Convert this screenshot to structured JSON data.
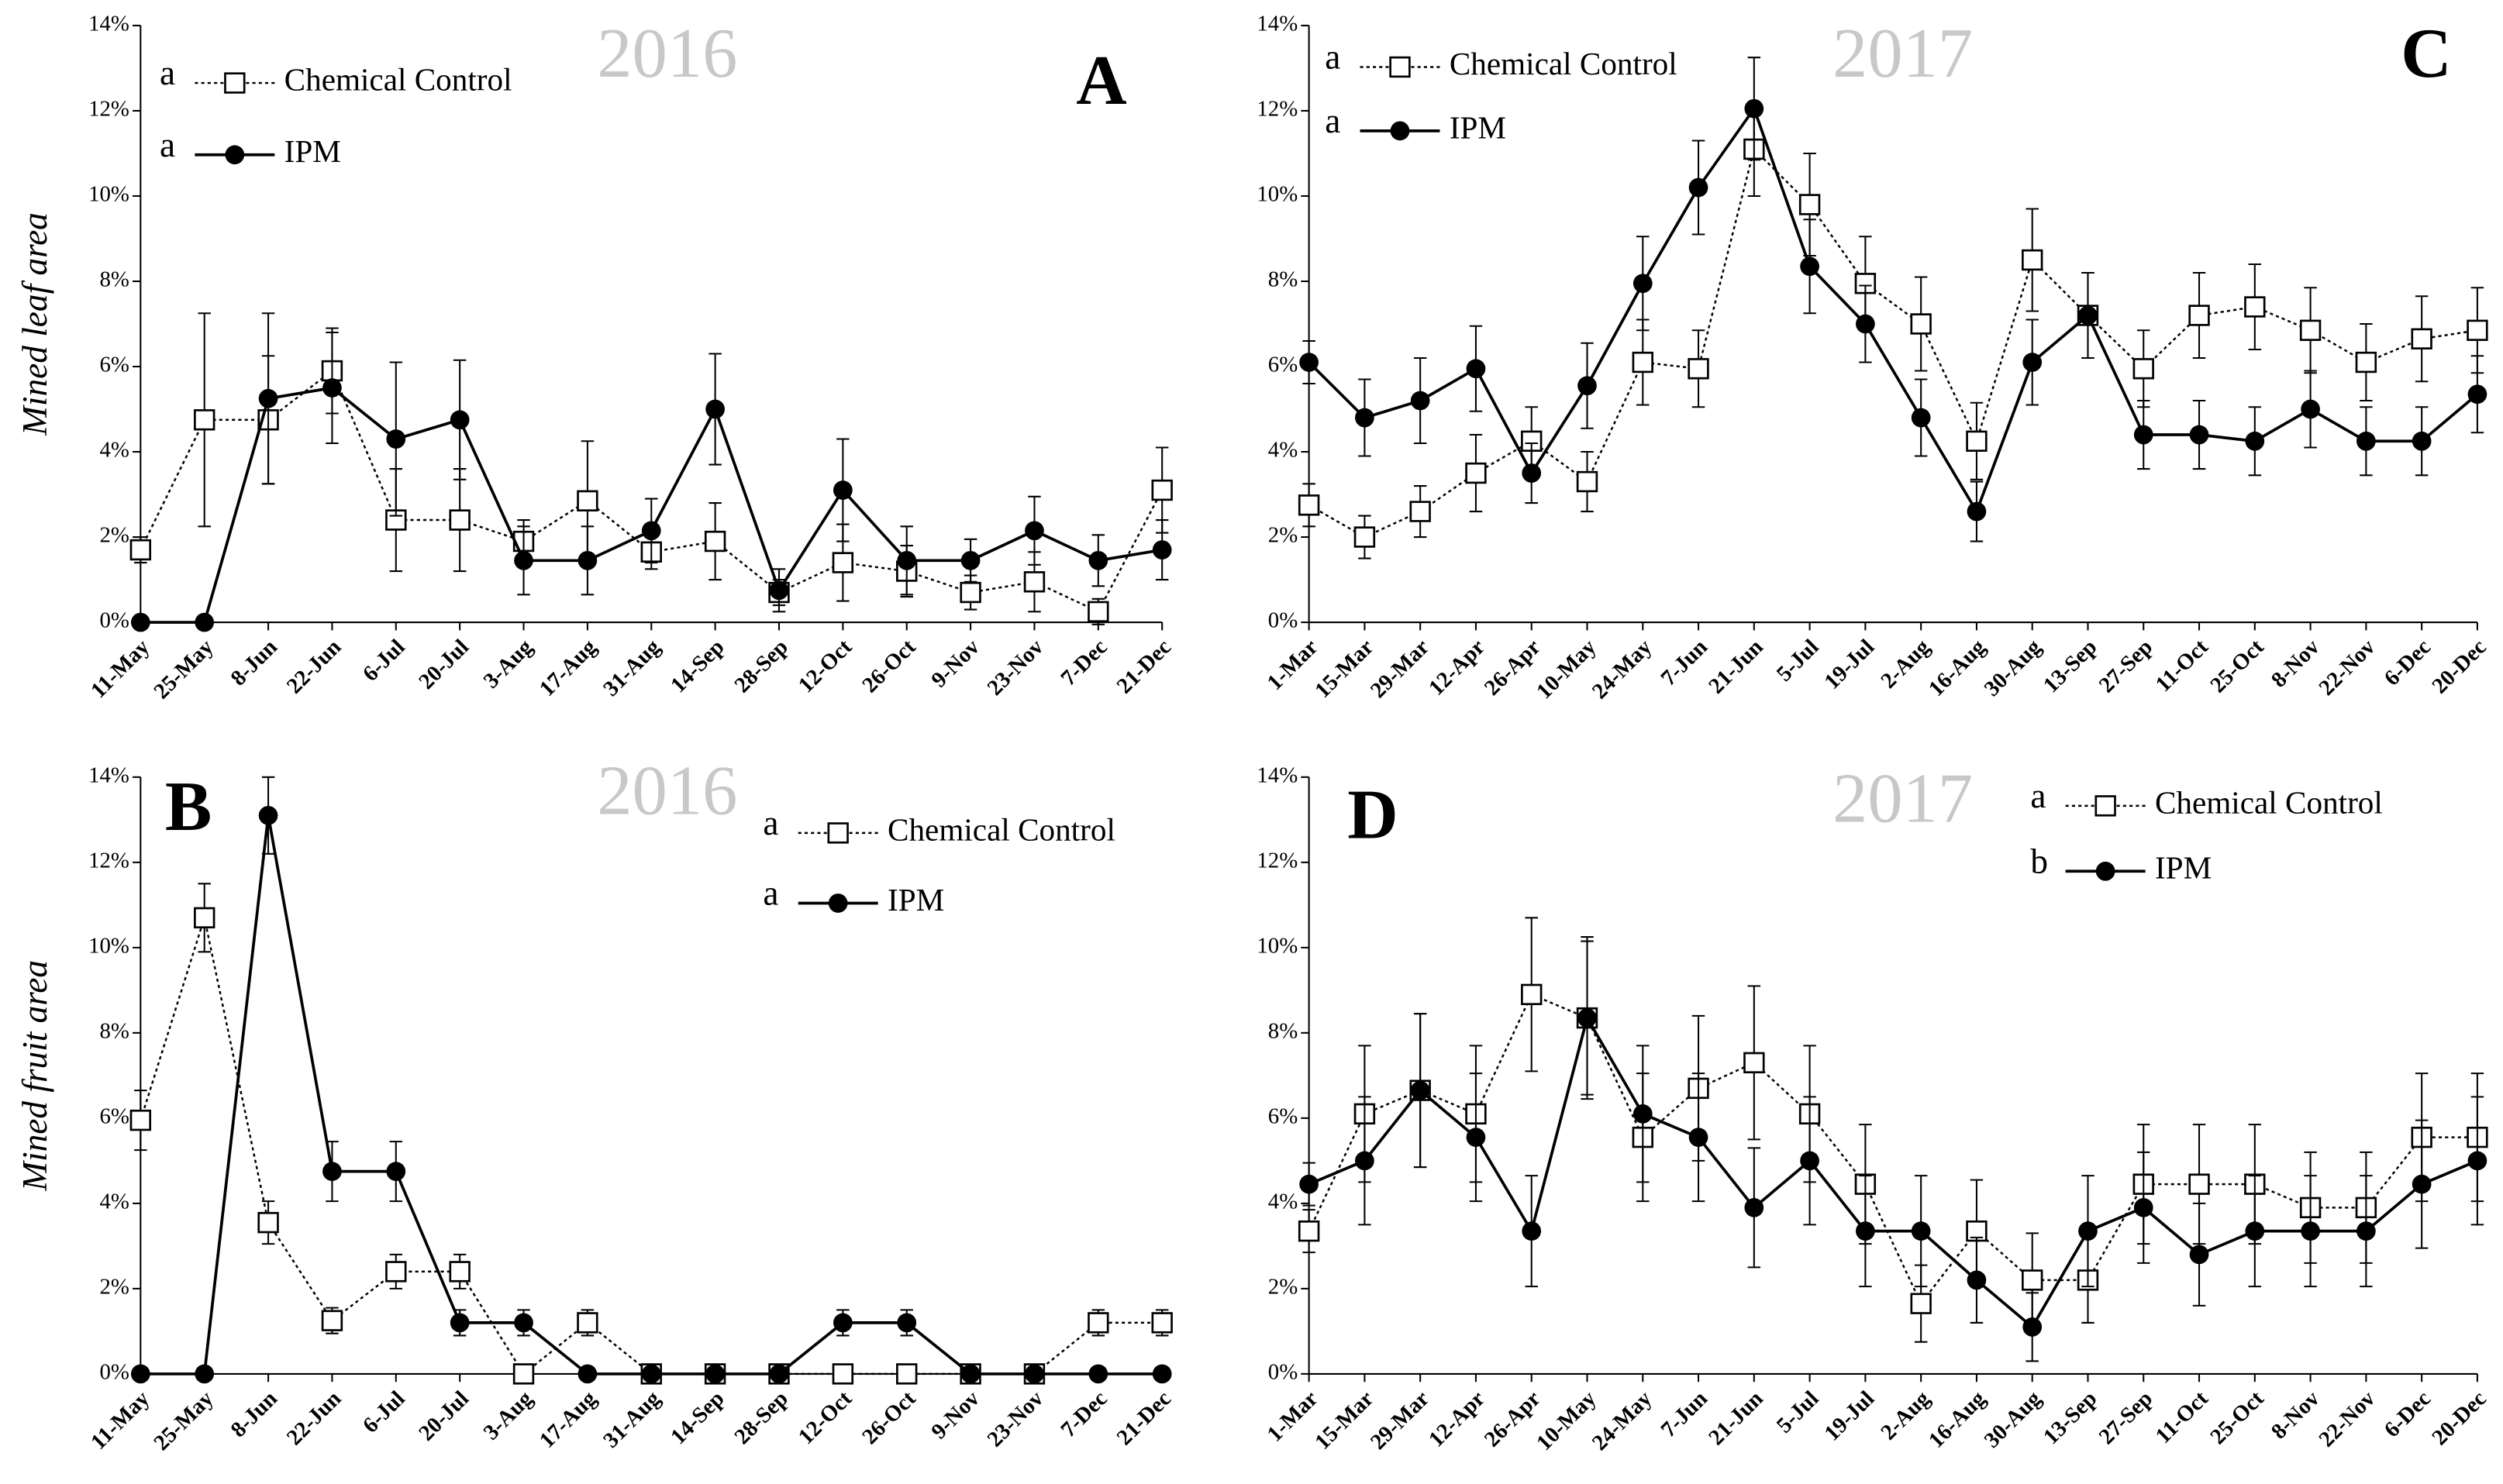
{
  "chart_data": [
    {
      "type": "line",
      "panel_label": "A",
      "year_label": "2016",
      "y_label": "Mined leaf area",
      "categories": [
        "11-May",
        "25-May",
        "8-Jun",
        "22-Jun",
        "6-Jul",
        "20-Jul",
        "3-Aug",
        "17-Aug",
        "31-Aug",
        "14-Sep",
        "28-Sep",
        "12-Oct",
        "26-Oct",
        "9-Nov",
        "23-Nov",
        "7-Dec",
        "21-Dec"
      ],
      "ylim": [
        0,
        14
      ],
      "yticks": [
        {
          "value": 0,
          "label": "0%"
        },
        {
          "value": 2,
          "label": "2%"
        },
        {
          "value": 4,
          "label": "4%"
        },
        {
          "value": 6,
          "label": "6%"
        },
        {
          "value": 8,
          "label": "8%"
        },
        {
          "value": 10,
          "label": "10%"
        },
        {
          "value": 12,
          "label": "12%"
        },
        {
          "value": 14,
          "label": "14%"
        }
      ],
      "series": [
        {
          "name": "Chemical Control",
          "significance": "a",
          "color": "#000000",
          "marker": "square",
          "line": "dotted",
          "values": [
            1.7,
            4.75,
            4.75,
            5.9,
            2.4,
            2.4,
            1.9,
            2.85,
            1.65,
            1.9,
            0.7,
            1.4,
            1.2,
            0.7,
            0.95,
            0.25,
            3.1
          ],
          "errors": [
            0.3,
            2.5,
            1.5,
            1.0,
            1.2,
            1.2,
            0.5,
            1.4,
            0.4,
            0.9,
            0.3,
            0.9,
            0.6,
            0.4,
            0.7,
            0.3,
            1.0
          ]
        },
        {
          "name": "IPM",
          "significance": "a",
          "color": "#000000",
          "marker": "circle",
          "line": "solid",
          "values": [
            0,
            0,
            5.25,
            5.5,
            4.3,
            4.75,
            1.45,
            1.45,
            2.15,
            5.0,
            0.75,
            3.1,
            1.45,
            1.45,
            2.15,
            1.45,
            1.7
          ],
          "errors": [
            0,
            0,
            2.0,
            1.3,
            1.8,
            1.4,
            0.8,
            0.8,
            0.75,
            1.3,
            0.5,
            1.2,
            0.8,
            0.5,
            0.8,
            0.6,
            0.7
          ]
        }
      ]
    },
    {
      "type": "line",
      "panel_label": "B",
      "year_label": "2016",
      "y_label": "Mined fruit area",
      "categories": [
        "11-May",
        "25-May",
        "8-Jun",
        "22-Jun",
        "6-Jul",
        "20-Jul",
        "3-Aug",
        "17-Aug",
        "31-Aug",
        "14-Sep",
        "28-Sep",
        "12-Oct",
        "26-Oct",
        "9-Nov",
        "23-Nov",
        "7-Dec",
        "21-Dec"
      ],
      "ylim": [
        0,
        14
      ],
      "yticks": [
        {
          "value": 0,
          "label": "0%"
        },
        {
          "value": 2,
          "label": "2%"
        },
        {
          "value": 4,
          "label": "4%"
        },
        {
          "value": 6,
          "label": "6%"
        },
        {
          "value": 8,
          "label": "8%"
        },
        {
          "value": 10,
          "label": "10%"
        },
        {
          "value": 12,
          "label": "12%"
        },
        {
          "value": 14,
          "label": "14%"
        }
      ],
      "series": [
        {
          "name": "Chemical Control",
          "significance": "a",
          "color": "#000000",
          "marker": "square",
          "line": "dotted",
          "values": [
            5.95,
            10.7,
            3.55,
            1.25,
            2.4,
            2.4,
            0,
            1.2,
            0,
            0,
            0,
            0,
            0,
            0,
            0,
            1.2,
            1.2
          ],
          "errors": [
            0.7,
            0.8,
            0.5,
            0.3,
            0.4,
            0.4,
            0,
            0.3,
            0,
            0,
            0,
            0,
            0,
            0,
            0,
            0.3,
            0.3
          ]
        },
        {
          "name": "IPM",
          "significance": "a",
          "color": "#000000",
          "marker": "circle",
          "line": "solid",
          "values": [
            0,
            0,
            13.1,
            4.75,
            4.75,
            1.2,
            1.2,
            0,
            0,
            0,
            0,
            1.2,
            1.2,
            0,
            0,
            0,
            0
          ],
          "errors": [
            0,
            0,
            0.9,
            0.7,
            0.7,
            0.3,
            0.3,
            0,
            0,
            0,
            0,
            0.3,
            0.3,
            0,
            0,
            0,
            0
          ]
        }
      ]
    },
    {
      "type": "line",
      "panel_label": "C",
      "year_label": "2017",
      "categories": [
        "1-Mar",
        "15-Mar",
        "29-Mar",
        "12-Apr",
        "26-Apr",
        "10-May",
        "24-May",
        "7-Jun",
        "21-Jun",
        "5-Jul",
        "19-Jul",
        "2-Aug",
        "16-Aug",
        "30-Aug",
        "13-Sep",
        "27-Sep",
        "11-Oct",
        "25-Oct",
        "8-Nov",
        "22-Nov",
        "6-Dec",
        "20-Dec"
      ],
      "ylim": [
        0,
        14
      ],
      "yticks": [
        {
          "value": 0,
          "label": "0%"
        },
        {
          "value": 2,
          "label": "2%"
        },
        {
          "value": 4,
          "label": "4%"
        },
        {
          "value": 6,
          "label": "6%"
        },
        {
          "value": 8,
          "label": "8%"
        },
        {
          "value": 10,
          "label": "10%"
        },
        {
          "value": 12,
          "label": "12%"
        },
        {
          "value": 14,
          "label": "14%"
        }
      ],
      "series": [
        {
          "name": "Chemical Control",
          "significance": "a",
          "color": "#000000",
          "marker": "square",
          "line": "dotted",
          "values": [
            2.75,
            2.0,
            2.6,
            3.5,
            4.25,
            3.3,
            6.1,
            5.95,
            11.1,
            9.8,
            7.95,
            7.0,
            4.25,
            8.5,
            7.2,
            5.95,
            7.2,
            7.4,
            6.85,
            6.1,
            6.65,
            6.85
          ],
          "errors": [
            0.5,
            0.5,
            0.6,
            0.9,
            0.8,
            0.7,
            1.0,
            0.9,
            1.1,
            1.2,
            1.1,
            1.1,
            0.9,
            1.2,
            1.0,
            0.9,
            1.0,
            1.0,
            1.0,
            0.9,
            1.0,
            1.0
          ]
        },
        {
          "name": "IPM",
          "significance": "a",
          "color": "#000000",
          "marker": "circle",
          "line": "solid",
          "values": [
            6.1,
            4.8,
            5.2,
            5.95,
            3.5,
            5.55,
            7.95,
            10.2,
            12.05,
            8.35,
            7.0,
            4.8,
            2.6,
            6.1,
            7.2,
            4.4,
            4.4,
            4.25,
            5.0,
            4.25,
            4.25,
            5.35
          ],
          "errors": [
            0.5,
            0.9,
            1.0,
            1.0,
            0.7,
            1.0,
            1.1,
            1.1,
            1.2,
            1.1,
            0.9,
            0.9,
            0.7,
            1.0,
            1.0,
            0.8,
            0.8,
            0.8,
            0.9,
            0.8,
            0.8,
            0.9
          ]
        }
      ]
    },
    {
      "type": "line",
      "panel_label": "D",
      "year_label": "2017",
      "categories": [
        "1-Mar",
        "15-Mar",
        "29-Mar",
        "12-Apr",
        "26-Apr",
        "10-May",
        "24-May",
        "7-Jun",
        "21-Jun",
        "5-Jul",
        "19-Jul",
        "2-Aug",
        "16-Aug",
        "30-Aug",
        "13-Sep",
        "27-Sep",
        "11-Oct",
        "25-Oct",
        "8-Nov",
        "22-Nov",
        "6-Dec",
        "20-Dec"
      ],
      "ylim": [
        0,
        14
      ],
      "yticks": [
        {
          "value": 0,
          "label": "0%"
        },
        {
          "value": 2,
          "label": "2%"
        },
        {
          "value": 4,
          "label": "4%"
        },
        {
          "value": 6,
          "label": "6%"
        },
        {
          "value": 8,
          "label": "8%"
        },
        {
          "value": 10,
          "label": "10%"
        },
        {
          "value": 12,
          "label": "12%"
        },
        {
          "value": 14,
          "label": "14%"
        }
      ],
      "series": [
        {
          "name": "Chemical Control",
          "significance": "a",
          "color": "#000000",
          "marker": "square",
          "line": "dotted",
          "values": [
            3.35,
            6.1,
            6.65,
            6.1,
            8.9,
            8.35,
            5.55,
            6.7,
            7.3,
            6.1,
            4.45,
            1.65,
            3.35,
            2.2,
            2.2,
            4.45,
            4.45,
            4.45,
            3.9,
            3.9,
            5.55,
            5.55
          ],
          "errors": [
            0.5,
            1.6,
            1.8,
            1.6,
            1.8,
            1.9,
            1.5,
            1.7,
            1.8,
            1.6,
            1.4,
            0.9,
            1.2,
            1.1,
            1.0,
            1.4,
            1.4,
            1.4,
            1.3,
            1.3,
            1.5,
            1.5
          ]
        },
        {
          "name": "IPM",
          "significance": "b",
          "color": "#000000",
          "marker": "circle",
          "line": "solid",
          "values": [
            4.45,
            5.0,
            6.65,
            5.55,
            3.35,
            8.35,
            6.1,
            5.55,
            3.9,
            5.0,
            3.35,
            3.35,
            2.2,
            1.1,
            3.35,
            3.9,
            2.8,
            3.35,
            3.35,
            3.35,
            4.45,
            5.0
          ],
          "errors": [
            0.5,
            1.5,
            1.8,
            1.5,
            1.3,
            1.8,
            1.6,
            1.5,
            1.4,
            1.5,
            1.3,
            1.3,
            1.0,
            0.8,
            1.3,
            1.3,
            1.2,
            1.3,
            1.3,
            1.3,
            1.5,
            1.5
          ]
        }
      ]
    }
  ]
}
